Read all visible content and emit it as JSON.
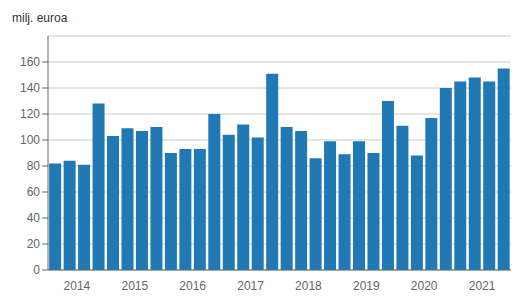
{
  "chart_data": {
    "type": "bar",
    "ylabel": "milj. euroa",
    "categories": [
      null,
      "2014",
      null,
      null,
      null,
      "2015",
      null,
      null,
      null,
      "2016",
      null,
      null,
      null,
      "2017",
      null,
      null,
      null,
      "2018",
      null,
      null,
      null,
      "2019",
      null,
      null,
      null,
      "2020",
      null,
      null,
      null,
      "2021",
      null,
      null
    ],
    "values": [
      82,
      84,
      81,
      128,
      103,
      109,
      107,
      110,
      90,
      93,
      93,
      120,
      104,
      112,
      102,
      151,
      110,
      107,
      86,
      99,
      89,
      99,
      90,
      130,
      111,
      88,
      117,
      140,
      145,
      148,
      145,
      155
    ],
    "color": "#2079b5",
    "ylim": [
      0,
      180
    ],
    "yticks": [
      0,
      20,
      40,
      60,
      80,
      100,
      120,
      140,
      160
    ],
    "grid": true
  }
}
